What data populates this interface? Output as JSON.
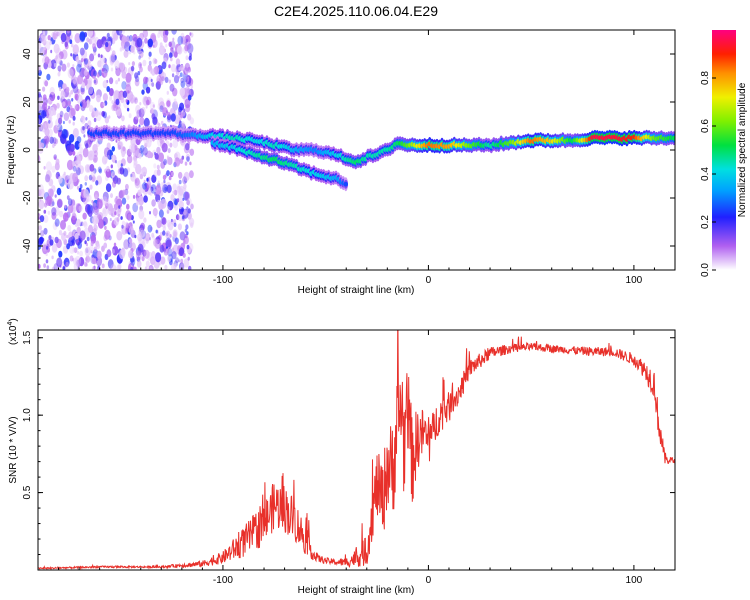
{
  "title": "C2E4.2025.110.06.04.E29",
  "chart_data": [
    {
      "type": "heatmap",
      "xlabel": "Height of straight line (km)",
      "ylabel": "Frequency (Hz)",
      "xlim": [
        -190,
        120
      ],
      "ylim": [
        -50,
        50
      ],
      "x_ticks": [
        -100,
        0,
        100
      ],
      "y_ticks": [
        -40,
        -20,
        0,
        20,
        40
      ],
      "colorbar": {
        "label": "Normalized spectral amplitude",
        "range": [
          0,
          1
        ],
        "ticks": [
          "0.0",
          "0.2",
          "0.4",
          "0.6",
          "0.8"
        ]
      },
      "noise_region_x": [
        -190,
        -115
      ],
      "ridge_main": {
        "x": [
          -165,
          -150,
          -140,
          -125,
          -115,
          -105,
          -95,
          -85,
          -75,
          -65,
          -55,
          -45,
          -35,
          -30,
          -25,
          -20,
          -15,
          -10,
          0,
          10,
          20,
          30,
          40,
          50,
          60,
          70,
          80,
          90,
          100,
          110,
          120
        ],
        "y": [
          7,
          7,
          7,
          7,
          6,
          6,
          5,
          4,
          2,
          0,
          0,
          -2,
          -5,
          -3,
          -2,
          0,
          3,
          2,
          2,
          2,
          2,
          2,
          3,
          4,
          4,
          4,
          5,
          5,
          5,
          5,
          5
        ],
        "amplitude": [
          0.25,
          0.25,
          0.25,
          0.25,
          0.3,
          0.4,
          0.45,
          0.4,
          0.45,
          0.35,
          0.3,
          0.4,
          0.5,
          0.45,
          0.45,
          0.45,
          0.5,
          0.6,
          0.85,
          0.8,
          0.6,
          0.45,
          0.6,
          0.85,
          0.75,
          0.5,
          0.95,
          0.95,
          0.9,
          0.6,
          0.5
        ]
      },
      "ridge_descending": {
        "x": [
          -105,
          -95,
          -85,
          -75,
          -65,
          -55,
          -45,
          -40
        ],
        "y": [
          3,
          1,
          -2,
          -4,
          -7,
          -10,
          -12,
          -14
        ],
        "amplitude": [
          0.35,
          0.4,
          0.45,
          0.5,
          0.45,
          0.4,
          0.35,
          0.25
        ]
      }
    },
    {
      "type": "line",
      "xlabel": "Height of straight line (km)",
      "ylabel": "SNR (10 * V/V)",
      "y_scale_label": "(x10",
      "y_scale_exponent": "4",
      "y_scale_suffix": ")",
      "xlim": [
        -190,
        120
      ],
      "ylim": [
        0,
        1.55
      ],
      "x_ticks": [
        -100,
        0,
        100
      ],
      "y_ticks": [
        0.5,
        1.0,
        1.5
      ],
      "y_tick_labels": [
        "0.5",
        "1.0",
        "1.5"
      ],
      "color": "#e8302a",
      "series": [
        {
          "x": [
            -190,
            -160,
            -130,
            -110,
            -100,
            -90,
            -80,
            -75,
            -70,
            -65,
            -60,
            -55,
            -50,
            -45,
            -40,
            -35,
            -30,
            -28,
            -25,
            -22,
            -20,
            -18,
            -15,
            -13,
            -12,
            -10,
            -8,
            -5,
            -2,
            0,
            5,
            10,
            15,
            20,
            30,
            40,
            50,
            60,
            70,
            80,
            90,
            100,
            105,
            110,
            112,
            115,
            120
          ],
          "y": [
            0.01,
            0.02,
            0.02,
            0.04,
            0.08,
            0.18,
            0.3,
            0.42,
            0.4,
            0.32,
            0.2,
            0.08,
            0.06,
            0.05,
            0.05,
            0.08,
            0.12,
            0.3,
            0.55,
            0.45,
            0.7,
            0.6,
            0.95,
            1.1,
            0.8,
            1.05,
            0.7,
            0.85,
            0.9,
            0.8,
            1.0,
            1.05,
            1.15,
            1.3,
            1.4,
            1.43,
            1.44,
            1.43,
            1.42,
            1.41,
            1.41,
            1.36,
            1.3,
            1.2,
            0.95,
            0.72,
            0.7
          ],
          "noise_amplitude": [
            0.005,
            0.006,
            0.006,
            0.02,
            0.04,
            0.1,
            0.14,
            0.16,
            0.16,
            0.14,
            0.1,
            0.03,
            0.02,
            0.02,
            0.03,
            0.06,
            0.1,
            0.15,
            0.22,
            0.25,
            0.3,
            0.35,
            0.35,
            0.35,
            0.35,
            0.3,
            0.3,
            0.2,
            0.15,
            0.15,
            0.12,
            0.1,
            0.08,
            0.06,
            0.04,
            0.03,
            0.025,
            0.025,
            0.025,
            0.03,
            0.03,
            0.04,
            0.06,
            0.1,
            0.1,
            0.04,
            0.02
          ]
        }
      ]
    }
  ]
}
